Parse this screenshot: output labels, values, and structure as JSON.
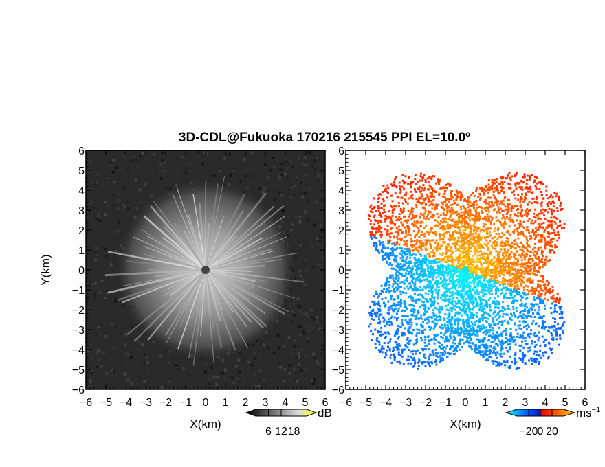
{
  "chart_data": [
    {
      "type": "heatmap",
      "title": "3D-CDL@Fukuoka 170216 215545 PPI EL=10.0º",
      "quantity": "reflectivity",
      "xlabel": "X(km)",
      "ylabel": "Y(km)",
      "xlim": [
        -6,
        6
      ],
      "ylim": [
        -6,
        6
      ],
      "x_ticks": [
        "−6",
        "−5",
        "−4",
        "−3",
        "−2",
        "−1",
        "0",
        "1",
        "2",
        "3",
        "4",
        "5",
        "6"
      ],
      "y_ticks": [
        "−6",
        "−5",
        "−4",
        "−3",
        "−2",
        "−1",
        "0",
        "1",
        "2",
        "3",
        "4",
        "5",
        "6"
      ],
      "colorbar": {
        "unit": "dB",
        "ticks": [
          "6",
          "12",
          "18"
        ],
        "range": [
          0,
          24
        ],
        "colors": [
          "#000000",
          "#ffffff",
          "#ffff00"
        ]
      },
      "data_extent_km": 4.5,
      "background_color": "#2a2a2a"
    },
    {
      "type": "heatmap",
      "quantity": "radial velocity",
      "xlabel": "X(km)",
      "xlim": [
        -6,
        6
      ],
      "ylim": [
        -6,
        6
      ],
      "x_ticks": [
        "−6",
        "−5",
        "−4",
        "−3",
        "−2",
        "−1",
        "0",
        "1",
        "2",
        "3",
        "4",
        "5",
        "6"
      ],
      "y_ticks": [
        "−6",
        "−5",
        "−4",
        "−3",
        "−2",
        "−1",
        "0",
        "1",
        "2",
        "3",
        "4",
        "5",
        "6"
      ],
      "colorbar": {
        "unit": "ms",
        "unit_exp": "−1",
        "ticks": [
          "−20",
          "0",
          "20"
        ],
        "range": [
          -30,
          30
        ],
        "colors": [
          "#00ffff",
          "#0044ff",
          "#ff0000",
          "#ffcc00"
        ]
      },
      "receding_color": "#ff6600",
      "approaching_color": "#2a7fff",
      "data_extent_km": 6
    }
  ]
}
